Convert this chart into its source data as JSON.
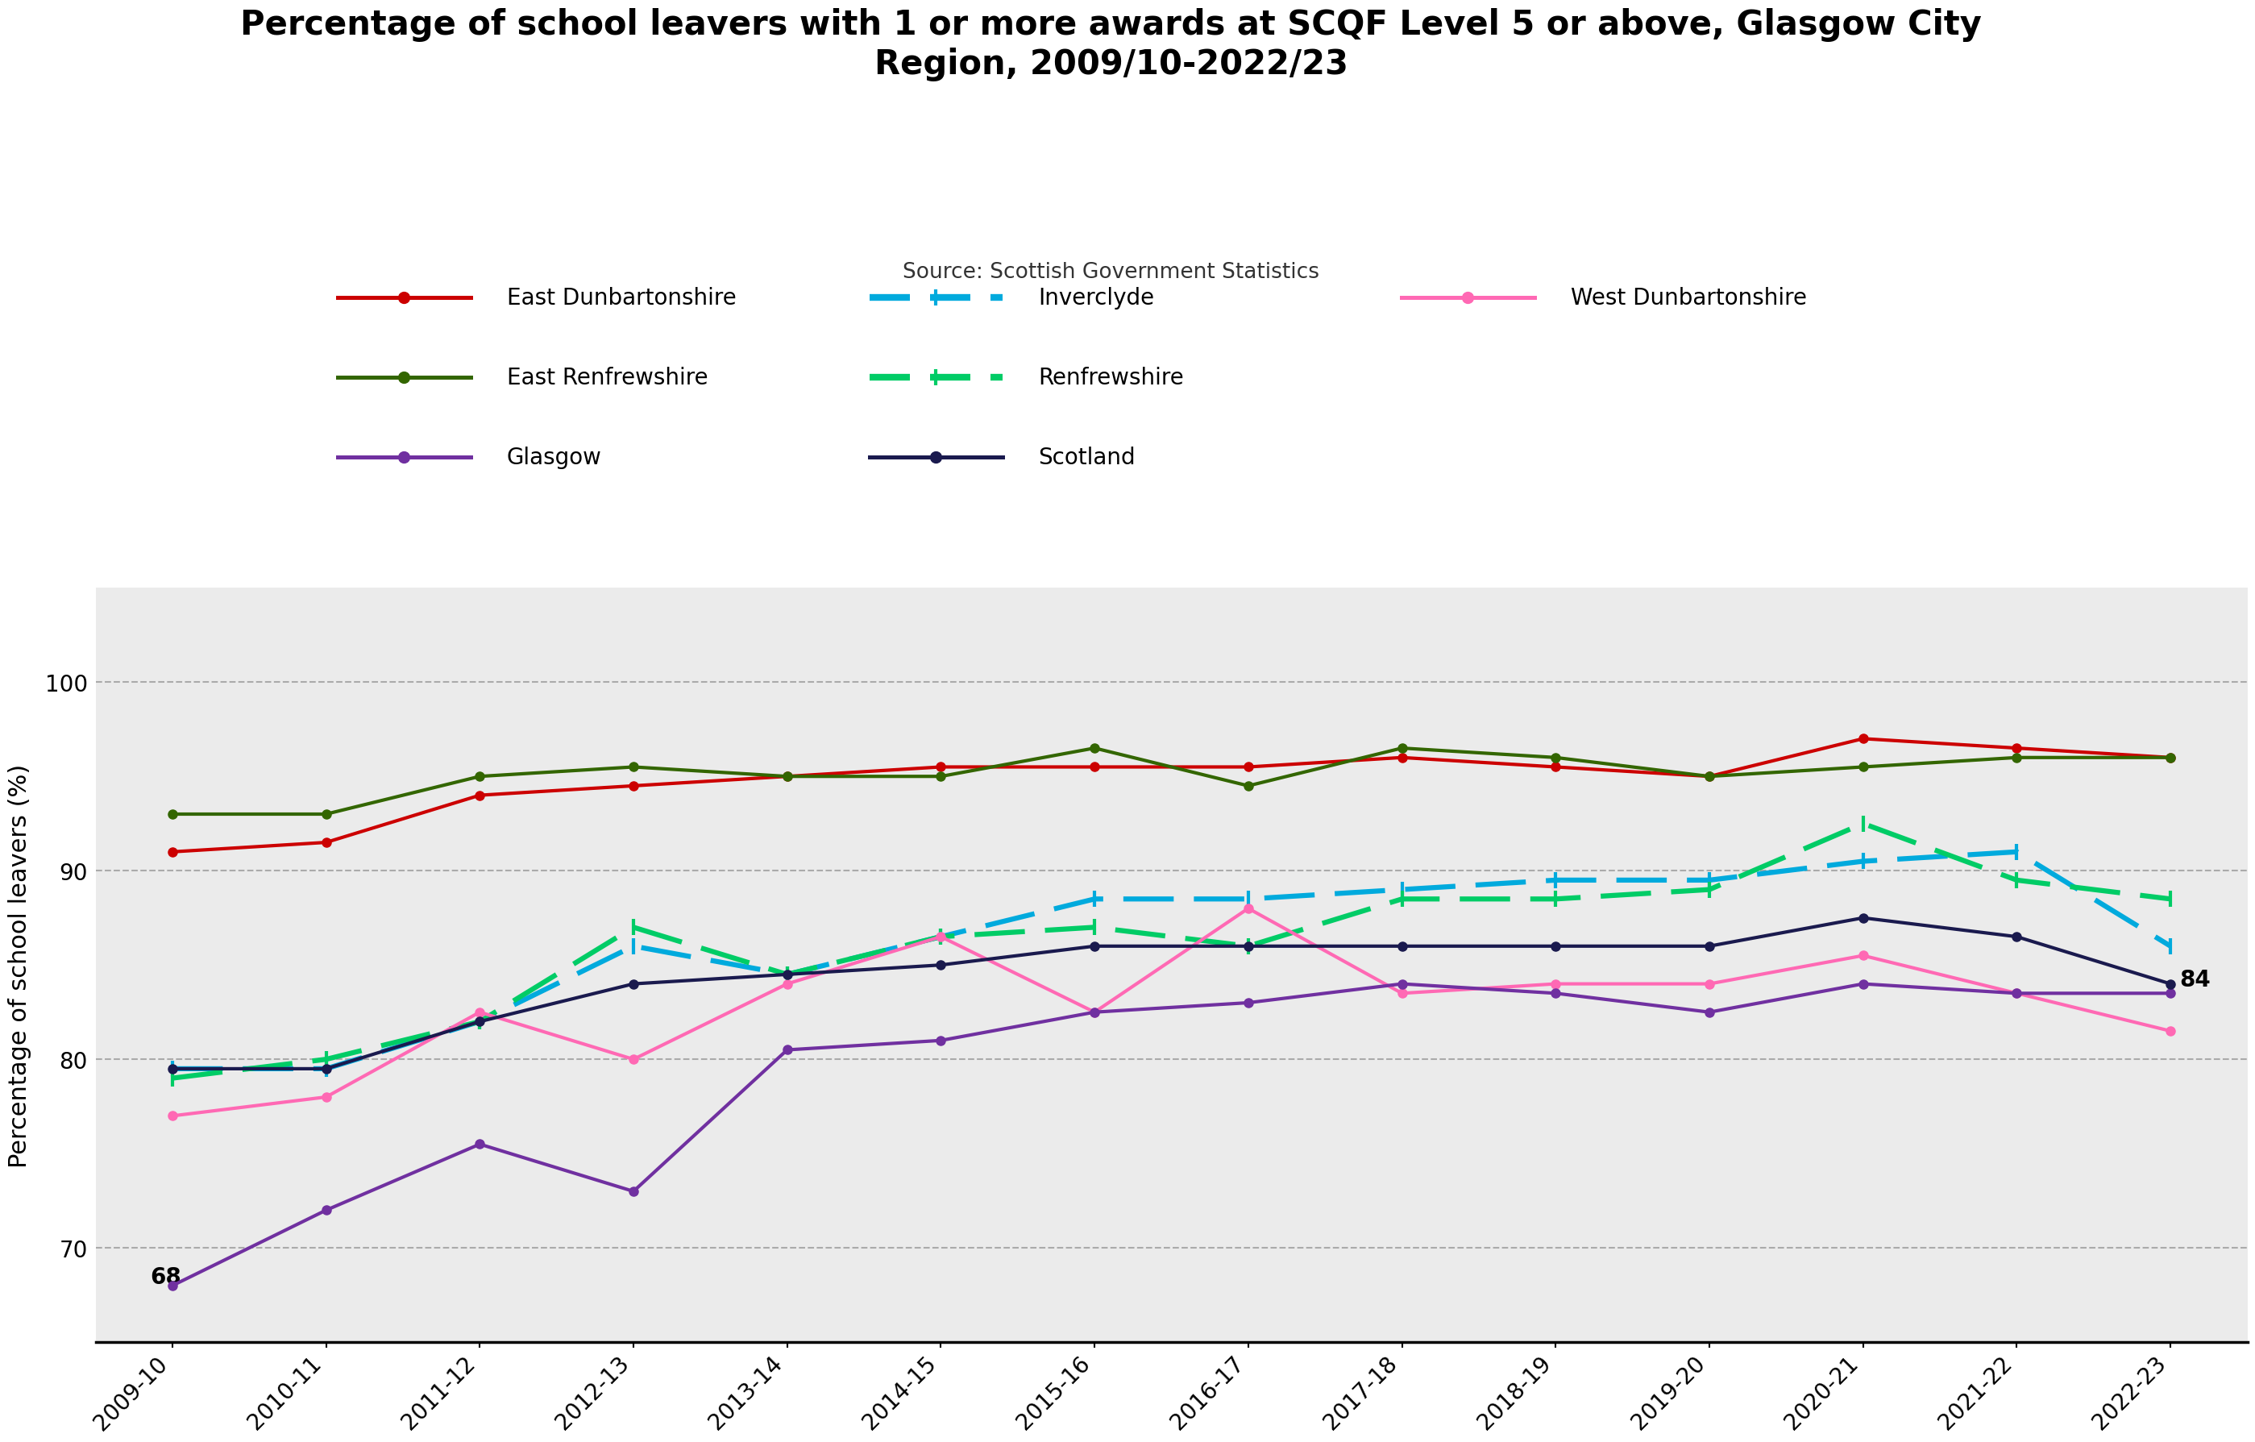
{
  "title": "Percentage of school leavers with 1 or more awards at SCQF Level 5 or above, Glasgow City\nRegion, 2009/10-2022/23",
  "source": "Source: Scottish Government Statistics",
  "ylabel": "Percentage of school leavers (%)",
  "years": [
    "2009-10",
    "2010-11",
    "2011-12",
    "2012-13",
    "2013-14",
    "2014-15",
    "2015-16",
    "2016-17",
    "2017-18",
    "2018-19",
    "2019-20",
    "2020-21",
    "2021-22",
    "2022-23"
  ],
  "series": {
    "East Dunbartonshire": {
      "values": [
        91,
        91.5,
        94,
        94.5,
        95,
        95.5,
        95.5,
        95.5,
        96,
        95.5,
        95,
        97,
        96.5,
        96
      ],
      "color": "#cc0000",
      "dashed": false,
      "zorder": 5,
      "legend_row": 0,
      "legend_col": 0
    },
    "Inverclyde": {
      "values": [
        79.5,
        79.5,
        82,
        86,
        84.5,
        86.5,
        88.5,
        88.5,
        89,
        89.5,
        89.5,
        90.5,
        91,
        86
      ],
      "color": "#00aadd",
      "dashed": true,
      "zorder": 4,
      "legend_row": 0,
      "legend_col": 1
    },
    "West Dunbartonshire": {
      "values": [
        77,
        78,
        82.5,
        80,
        84,
        86.5,
        82.5,
        88,
        83.5,
        84,
        84,
        85.5,
        83.5,
        81.5
      ],
      "color": "#ff69b4",
      "dashed": false,
      "zorder": 5,
      "legend_row": 0,
      "legend_col": 2
    },
    "East Renfrewshire": {
      "values": [
        93,
        93,
        95,
        95.5,
        95,
        95,
        96.5,
        94.5,
        96.5,
        96,
        95,
        95.5,
        96,
        96
      ],
      "color": "#336600",
      "dashed": false,
      "zorder": 5,
      "legend_row": 1,
      "legend_col": 0
    },
    "Renfrewshire": {
      "values": [
        79,
        80,
        82,
        87,
        84.5,
        86.5,
        87,
        86,
        88.5,
        88.5,
        89,
        92.5,
        89.5,
        88.5
      ],
      "color": "#00cc66",
      "dashed": true,
      "zorder": 4,
      "legend_row": 1,
      "legend_col": 1
    },
    "Glasgow": {
      "values": [
        68,
        72,
        75.5,
        73,
        80.5,
        81,
        82.5,
        83,
        84,
        83.5,
        82.5,
        84,
        83.5,
        83.5
      ],
      "color": "#7030a0",
      "dashed": false,
      "zorder": 5,
      "legend_row": 2,
      "legend_col": 0
    },
    "Scotland": {
      "values": [
        79.5,
        79.5,
        82,
        84,
        84.5,
        85,
        86,
        86,
        86,
        86,
        86,
        87.5,
        86.5,
        84
      ],
      "color": "#1a1a4e",
      "dashed": false,
      "zorder": 5,
      "legend_row": 2,
      "legend_col": 1
    }
  },
  "ylim": [
    65,
    105
  ],
  "yticks": [
    70,
    80,
    90,
    100
  ],
  "plot_bg_color": "#ebebeb",
  "outer_bg_color": "#ffffff",
  "annotation_glasgow": {
    "text": "68",
    "xi": 0,
    "y": 68
  },
  "annotation_scotland": {
    "text": "84",
    "xi": 13,
    "y": 84
  },
  "title_fontsize": 30,
  "source_fontsize": 19,
  "tick_fontsize": 20,
  "ylabel_fontsize": 22,
  "legend_fontsize": 20,
  "linewidth": 3.0,
  "markersize": 8
}
